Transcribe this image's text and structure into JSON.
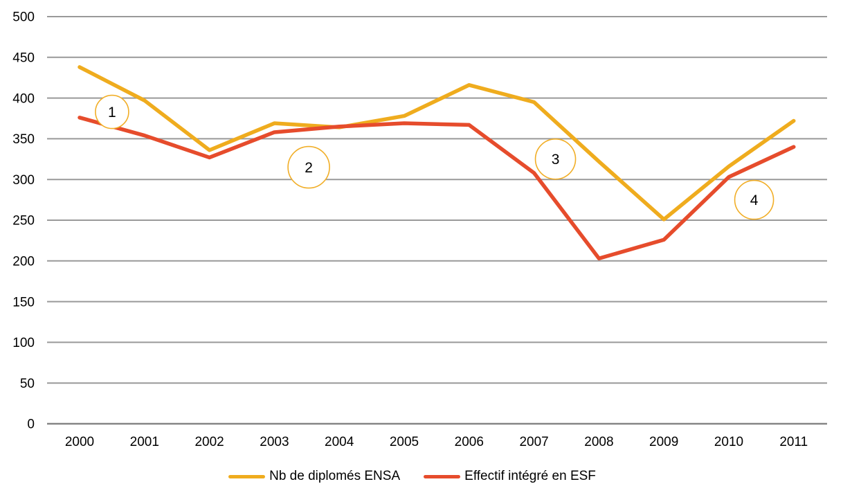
{
  "chart_data": {
    "type": "line",
    "title": "",
    "xlabel": "",
    "ylabel": "",
    "categories": [
      "2000",
      "2001",
      "2002",
      "2003",
      "2004",
      "2005",
      "2006",
      "2007",
      "2008",
      "2009",
      "2010",
      "2011"
    ],
    "series": [
      {
        "name": "Nb de diplomés ENSA",
        "color": "#EFAC1E",
        "values": [
          438,
          397,
          336,
          369,
          364,
          378,
          416,
          395,
          322,
          251,
          316,
          372
        ]
      },
      {
        "name": "Effectif intégré en ESF",
        "color": "#E64C2C",
        "values": [
          376,
          354,
          327,
          358,
          365,
          369,
          367,
          308,
          203,
          226,
          303,
          340
        ]
      }
    ],
    "ylim": [
      0,
      500
    ],
    "ytick_step": 50,
    "ytick_labels": [
      "0",
      "50",
      "100",
      "150",
      "200",
      "250",
      "300",
      "350",
      "400",
      "450",
      "500"
    ],
    "grid": "horizontal",
    "gridline_color": "#999999",
    "zero_axis_color": "#858585",
    "text_color": "#000000",
    "legend_position": "bottom",
    "annotations": [
      {
        "label": "1",
        "year": 2000.5,
        "value": 383,
        "radius": 24
      },
      {
        "label": "2",
        "year": 2003.53,
        "value": 315,
        "radius": 30
      },
      {
        "label": "3",
        "year": 2007.33,
        "value": 325,
        "radius": 29
      },
      {
        "label": "4",
        "year": 2010.39,
        "value": 275,
        "radius": 28
      }
    ],
    "annotation_circle_color": "#F1AE27"
  }
}
